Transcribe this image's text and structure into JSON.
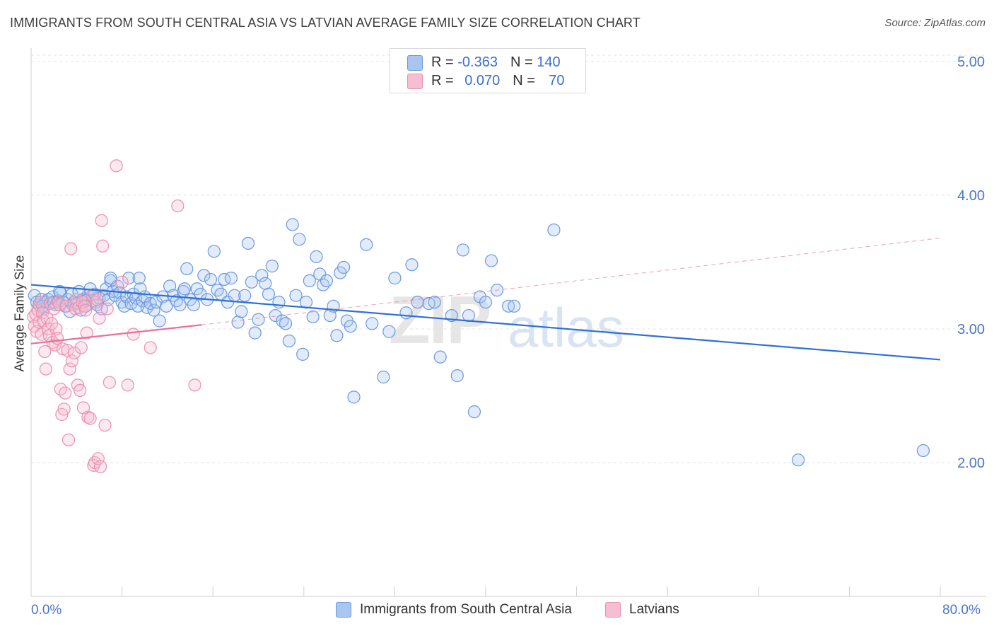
{
  "title": "IMMIGRANTS FROM SOUTH CENTRAL ASIA VS LATVIAN AVERAGE FAMILY SIZE CORRELATION CHART",
  "source": "Source: ZipAtlas.com",
  "watermark": {
    "zip": "ZIP",
    "atlas": "atlas"
  },
  "legend_top": {
    "blue": {
      "r_label": "R = ",
      "r_value": "-0.363",
      "n_label": "N = ",
      "n_value": "140"
    },
    "pink": {
      "r_label": "R = ",
      "r_value": "0.070",
      "n_label": "N = ",
      "n_value": "70"
    }
  },
  "legend_bottom": {
    "blue": "Immigrants from South Central Asia",
    "pink": "Latvians"
  },
  "colors": {
    "blue": "#6a99e0",
    "blue_fill": "#a9c6f1",
    "blue_line": "#2f6fd6",
    "pink": "#ec90ad",
    "pink_fill": "#f6bed0",
    "pink_line": "#e8709a",
    "tick_label": "#4a76c9"
  },
  "chart_data": {
    "type": "scatter",
    "title": "IMMIGRANTS FROM SOUTH CENTRAL ASIA VS LATVIAN AVERAGE FAMILY SIZE CORRELATION CHART",
    "xlabel": "",
    "ylabel": "Average Family Size",
    "xlim": [
      0,
      80
    ],
    "ylim": [
      1.0,
      5.1
    ],
    "x_tick_labels": [
      "0.0%",
      "80.0%"
    ],
    "y_ticks": [
      2.0,
      3.0,
      4.0,
      5.0
    ],
    "y_tick_labels": [
      "2.00",
      "3.00",
      "4.00",
      "5.00"
    ],
    "grid": true,
    "legend_position": "top-center",
    "series": [
      {
        "name": "Immigrants from South Central Asia",
        "color": "#6a99e0",
        "trend": {
          "x": [
            0,
            80
          ],
          "y": [
            3.33,
            2.77
          ]
        },
        "points": [
          [
            0.3,
            3.25
          ],
          [
            0.5,
            3.2
          ],
          [
            0.7,
            3.18
          ],
          [
            0.9,
            3.22
          ],
          [
            1.1,
            3.15
          ],
          [
            1.3,
            3.2
          ],
          [
            1.5,
            3.22
          ],
          [
            1.7,
            3.19
          ],
          [
            1.9,
            3.24
          ],
          [
            2.0,
            3.2
          ],
          [
            2.2,
            3.18
          ],
          [
            2.4,
            3.21
          ],
          [
            2.6,
            3.27
          ],
          [
            2.8,
            3.2
          ],
          [
            3.0,
            3.17
          ],
          [
            3.2,
            3.22
          ],
          [
            3.4,
            3.13
          ],
          [
            3.6,
            3.26
          ],
          [
            3.8,
            3.2
          ],
          [
            4.0,
            3.19
          ],
          [
            4.2,
            3.28
          ],
          [
            4.4,
            3.14
          ],
          [
            4.6,
            3.22
          ],
          [
            4.8,
            3.17
          ],
          [
            5.0,
            3.25
          ],
          [
            5.2,
            3.3
          ],
          [
            5.4,
            3.21
          ],
          [
            5.6,
            3.26
          ],
          [
            5.8,
            3.18
          ],
          [
            6.0,
            3.23
          ],
          [
            6.2,
            3.15
          ],
          [
            6.4,
            3.25
          ],
          [
            6.6,
            3.3
          ],
          [
            6.8,
            3.22
          ],
          [
            7.0,
            3.36
          ],
          [
            7.2,
            3.28
          ],
          [
            7.4,
            3.25
          ],
          [
            7.6,
            3.32
          ],
          [
            7.8,
            3.27
          ],
          [
            8.0,
            3.2
          ],
          [
            8.2,
            3.17
          ],
          [
            8.4,
            3.24
          ],
          [
            8.6,
            3.38
          ],
          [
            8.8,
            3.19
          ],
          [
            9.0,
            3.26
          ],
          [
            9.2,
            3.23
          ],
          [
            9.4,
            3.17
          ],
          [
            9.6,
            3.3
          ],
          [
            9.8,
            3.21
          ],
          [
            10.0,
            3.24
          ],
          [
            10.2,
            3.16
          ],
          [
            10.5,
            3.19
          ],
          [
            10.8,
            3.14
          ],
          [
            11.0,
            3.2
          ],
          [
            11.3,
            3.06
          ],
          [
            11.6,
            3.24
          ],
          [
            11.9,
            3.17
          ],
          [
            12.2,
            3.32
          ],
          [
            12.5,
            3.25
          ],
          [
            12.8,
            3.21
          ],
          [
            13.1,
            3.18
          ],
          [
            13.4,
            3.28
          ],
          [
            13.7,
            3.45
          ],
          [
            14.0,
            3.22
          ],
          [
            14.3,
            3.18
          ],
          [
            14.6,
            3.3
          ],
          [
            14.9,
            3.26
          ],
          [
            15.2,
            3.4
          ],
          [
            15.5,
            3.22
          ],
          [
            15.8,
            3.37
          ],
          [
            16.1,
            3.58
          ],
          [
            16.4,
            3.29
          ],
          [
            16.7,
            3.26
          ],
          [
            17.0,
            3.37
          ],
          [
            17.3,
            3.2
          ],
          [
            17.6,
            3.38
          ],
          [
            17.9,
            3.25
          ],
          [
            18.2,
            3.05
          ],
          [
            18.5,
            3.13
          ],
          [
            18.8,
            3.25
          ],
          [
            19.1,
            3.64
          ],
          [
            19.4,
            3.35
          ],
          [
            19.7,
            2.97
          ],
          [
            20.0,
            3.07
          ],
          [
            20.3,
            3.4
          ],
          [
            20.6,
            3.34
          ],
          [
            20.9,
            3.26
          ],
          [
            21.2,
            3.47
          ],
          [
            21.5,
            3.1
          ],
          [
            21.8,
            3.2
          ],
          [
            22.1,
            3.06
          ],
          [
            22.4,
            3.04
          ],
          [
            22.7,
            2.91
          ],
          [
            23.0,
            3.78
          ],
          [
            23.3,
            3.25
          ],
          [
            23.6,
            3.67
          ],
          [
            23.9,
            2.81
          ],
          [
            24.2,
            3.2
          ],
          [
            24.5,
            3.36
          ],
          [
            24.8,
            3.09
          ],
          [
            25.1,
            3.54
          ],
          [
            25.4,
            3.41
          ],
          [
            25.7,
            3.33
          ],
          [
            26.0,
            3.36
          ],
          [
            26.3,
            3.1
          ],
          [
            26.6,
            3.17
          ],
          [
            26.9,
            2.95
          ],
          [
            27.2,
            3.42
          ],
          [
            27.5,
            3.46
          ],
          [
            27.8,
            3.06
          ],
          [
            28.1,
            3.02
          ],
          [
            28.4,
            2.49
          ],
          [
            29.5,
            3.63
          ],
          [
            30.0,
            3.04
          ],
          [
            31.0,
            2.64
          ],
          [
            31.5,
            2.98
          ],
          [
            32.0,
            3.38
          ],
          [
            33.0,
            3.12
          ],
          [
            33.5,
            3.48
          ],
          [
            34.0,
            3.2
          ],
          [
            35.0,
            3.19
          ],
          [
            35.5,
            3.2
          ],
          [
            36.0,
            2.79
          ],
          [
            37.0,
            3.1
          ],
          [
            37.5,
            2.65
          ],
          [
            38.0,
            3.59
          ],
          [
            38.5,
            3.1
          ],
          [
            39.0,
            2.38
          ],
          [
            39.5,
            3.24
          ],
          [
            40.0,
            3.2
          ],
          [
            40.5,
            3.51
          ],
          [
            41.0,
            3.29
          ],
          [
            42.0,
            3.17
          ],
          [
            42.5,
            3.17
          ],
          [
            46.0,
            3.74
          ],
          [
            67.5,
            2.02
          ],
          [
            78.5,
            2.09
          ],
          [
            7.0,
            3.38
          ],
          [
            13.5,
            3.3
          ],
          [
            1.0,
            3.17
          ],
          [
            2.5,
            3.28
          ],
          [
            4.8,
            3.21
          ],
          [
            9.5,
            3.38
          ]
        ]
      },
      {
        "name": "Latvians",
        "color": "#ec90ad",
        "trend": {
          "x": [
            0,
            15
          ],
          "y": [
            2.89,
            3.03
          ]
        },
        "trend_dashed": {
          "x": [
            15,
            80
          ],
          "y": [
            3.03,
            3.68
          ]
        },
        "points": [
          [
            0.2,
            3.09
          ],
          [
            0.3,
            3.02
          ],
          [
            0.4,
            3.11
          ],
          [
            0.5,
            2.98
          ],
          [
            0.6,
            3.14
          ],
          [
            0.7,
            3.05
          ],
          [
            0.8,
            3.2
          ],
          [
            0.9,
            2.96
          ],
          [
            1.0,
            3.12
          ],
          [
            1.1,
            3.06
          ],
          [
            1.2,
            2.83
          ],
          [
            1.3,
            2.7
          ],
          [
            1.4,
            3.08
          ],
          [
            1.5,
            3.0
          ],
          [
            1.6,
            2.95
          ],
          [
            1.7,
            3.19
          ],
          [
            1.8,
            3.04
          ],
          [
            1.9,
            2.9
          ],
          [
            2.0,
            3.15
          ],
          [
            2.1,
            2.88
          ],
          [
            2.2,
            3.0
          ],
          [
            2.3,
            2.93
          ],
          [
            2.4,
            3.2
          ],
          [
            2.5,
            3.18
          ],
          [
            2.6,
            2.55
          ],
          [
            2.7,
            2.36
          ],
          [
            2.8,
            2.85
          ],
          [
            2.9,
            2.4
          ],
          [
            3.0,
            2.52
          ],
          [
            3.1,
            3.17
          ],
          [
            3.2,
            2.84
          ],
          [
            3.3,
            2.17
          ],
          [
            3.4,
            2.7
          ],
          [
            3.5,
            3.6
          ],
          [
            3.6,
            2.76
          ],
          [
            3.7,
            3.18
          ],
          [
            3.8,
            2.82
          ],
          [
            3.9,
            3.15
          ],
          [
            4.0,
            3.22
          ],
          [
            4.1,
            2.58
          ],
          [
            4.2,
            3.16
          ],
          [
            4.3,
            2.54
          ],
          [
            4.4,
            2.86
          ],
          [
            4.5,
            3.2
          ],
          [
            4.6,
            2.41
          ],
          [
            4.7,
            3.17
          ],
          [
            4.8,
            3.14
          ],
          [
            4.9,
            2.97
          ],
          [
            5.0,
            2.34
          ],
          [
            5.2,
            2.33
          ],
          [
            5.4,
            3.25
          ],
          [
            5.5,
            1.98
          ],
          [
            5.6,
            2.0
          ],
          [
            5.7,
            3.2
          ],
          [
            5.8,
            3.22
          ],
          [
            5.9,
            2.03
          ],
          [
            6.0,
            3.08
          ],
          [
            6.1,
            1.97
          ],
          [
            6.2,
            3.81
          ],
          [
            6.3,
            3.62
          ],
          [
            6.5,
            2.28
          ],
          [
            6.7,
            3.15
          ],
          [
            6.9,
            2.6
          ],
          [
            7.5,
            4.22
          ],
          [
            8.0,
            3.35
          ],
          [
            8.5,
            2.58
          ],
          [
            9.0,
            2.96
          ],
          [
            10.5,
            2.86
          ],
          [
            12.9,
            3.92
          ],
          [
            14.4,
            2.58
          ]
        ]
      }
    ]
  }
}
